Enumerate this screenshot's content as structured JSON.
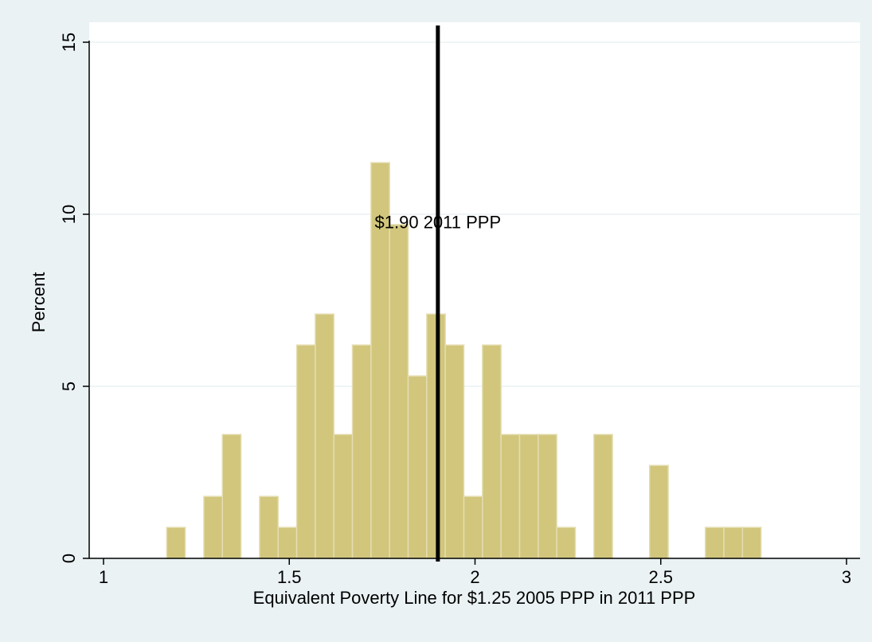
{
  "chart_data": {
    "type": "bar",
    "xlabel": "Equivalent Poverty Line for $1.25 2005 PPP in 2011 PPP",
    "ylabel": "Percent",
    "xlim": [
      1,
      3
    ],
    "ylim": [
      0,
      15
    ],
    "x_ticks": [
      "1",
      "1.5",
      "2",
      "2.5",
      "3"
    ],
    "y_ticks": [
      "0",
      "5",
      "10",
      "15"
    ],
    "bin_width": 0.05,
    "bins": [
      {
        "start": 1.17,
        "value": 0.9
      },
      {
        "start": 1.27,
        "value": 1.8
      },
      {
        "start": 1.32,
        "value": 3.6
      },
      {
        "start": 1.42,
        "value": 1.8
      },
      {
        "start": 1.47,
        "value": 0.9
      },
      {
        "start": 1.52,
        "value": 6.2
      },
      {
        "start": 1.57,
        "value": 7.1
      },
      {
        "start": 1.62,
        "value": 3.6
      },
      {
        "start": 1.67,
        "value": 6.2
      },
      {
        "start": 1.72,
        "value": 11.5
      },
      {
        "start": 1.77,
        "value": 9.7
      },
      {
        "start": 1.82,
        "value": 5.3
      },
      {
        "start": 1.87,
        "value": 7.1
      },
      {
        "start": 1.92,
        "value": 6.2
      },
      {
        "start": 1.97,
        "value": 1.8
      },
      {
        "start": 2.02,
        "value": 6.2
      },
      {
        "start": 2.07,
        "value": 3.6
      },
      {
        "start": 2.12,
        "value": 3.6
      },
      {
        "start": 2.17,
        "value": 3.6
      },
      {
        "start": 2.22,
        "value": 0.9
      },
      {
        "start": 2.32,
        "value": 3.6
      },
      {
        "start": 2.47,
        "value": 2.7
      },
      {
        "start": 2.62,
        "value": 0.9
      },
      {
        "start": 2.67,
        "value": 0.9
      },
      {
        "start": 2.72,
        "value": 0.9
      }
    ],
    "reference_line": {
      "x": 1.9,
      "label": "$1.90 2011 PPP"
    },
    "grid": true,
    "colors": {
      "bar_fill": "#d1c67c",
      "bar_edge": "#e5ddb0",
      "background": "#eaf2f3",
      "plot_background": "#ffffff",
      "gridline": "#eaf2f3"
    }
  }
}
